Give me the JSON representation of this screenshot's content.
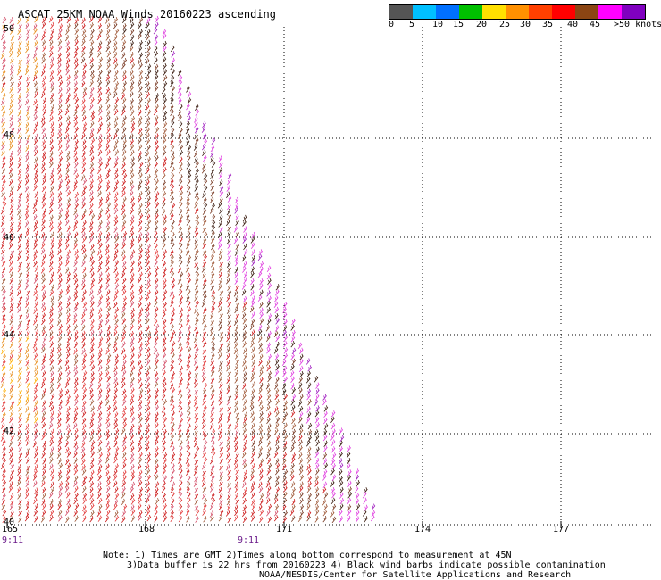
{
  "title": "ASCAT 25KM NOAA Winds 20160223 ascending",
  "scale": {
    "labels": [
      "0",
      "5",
      "10",
      "15",
      "20",
      "25",
      "30",
      "35",
      "40",
      "45",
      ">50 knots"
    ],
    "colors": [
      "#555555",
      "#00c0ff",
      "#0070ff",
      "#00c000",
      "#ffe000",
      "#ff9000",
      "#ff4000",
      "#ff0000",
      "#8b4513",
      "#ff00ff",
      "#8000c0"
    ]
  },
  "map": {
    "lon_ticks": [
      "165",
      "168",
      "171",
      "174",
      "177"
    ],
    "lat_ticks": [
      "50",
      "48",
      "46",
      "44",
      "42",
      "40"
    ],
    "times": [
      "9:11",
      "9:11"
    ],
    "barb_colors": [
      "#cc1b1b",
      "#e23a3a",
      "#d4506a",
      "#a05a3a",
      "#7a3b25",
      "#3a1c10",
      "#e040e0",
      "#a020c0",
      "#e89020",
      "#ffb000"
    ]
  },
  "notes": {
    "line1": "Note: 1) Times are GMT 2)Times along bottom correspond to measurement at 45N",
    "line2": "3)Data buffer is 22 hrs from 20160223 4) Black wind barbs indicate possible contamination",
    "line3": "NOAA/NESDIS/Center for Satellite Applications and Research"
  }
}
